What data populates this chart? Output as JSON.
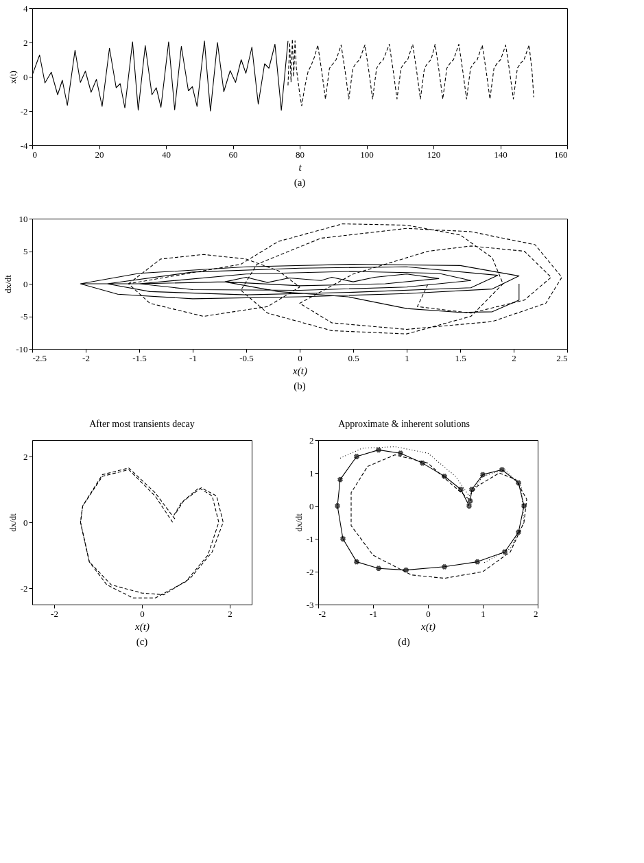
{
  "chart_data": [
    {
      "type": "line",
      "xlabel": "t",
      "ylabel": "x(t)",
      "xlim": [
        0,
        160
      ],
      "ylim": [
        -4,
        4
      ],
      "xticks": [
        0,
        20,
        40,
        60,
        80,
        100,
        120,
        140,
        160
      ],
      "yticks": [
        -4,
        -2,
        0,
        2,
        4
      ],
      "annotations": [
        "(a)"
      ],
      "series": [
        {
          "color": "#000000",
          "line_style": "solid",
          "x": [
            0,
            2.2,
            3.8,
            5.7,
            7.6,
            9,
            10.5,
            12.8,
            14.4,
            15.9,
            17.6,
            19.2,
            20.9,
            23.1,
            25.1,
            26.3,
            27.7,
            30,
            31.7,
            33.8,
            35.8,
            37.1,
            38.5,
            40.8,
            42.6,
            44.6,
            46.7,
            47.9,
            49.3,
            51.5,
            53.3,
            55.4,
            57.3,
            59.2,
            60.8,
            62.5,
            63.9,
            65.7,
            67.6,
            69.5,
            70.8,
            72.6,
            74.5,
            76.5
          ],
          "values": [
            0.1,
            1.27,
            -0.36,
            0.27,
            -1.05,
            -0.2,
            -1.67,
            1.55,
            -0.33,
            0.33,
            -0.9,
            -0.15,
            -1.73,
            1.67,
            -0.64,
            -0.4,
            -1.82,
            2.04,
            -1.95,
            1.82,
            -1.05,
            -0.64,
            -1.78,
            2.04,
            -1.93,
            1.78,
            -0.82,
            -0.58,
            -1.73,
            2.09,
            -2.0,
            2.0,
            -0.87,
            0.36,
            -0.33,
            1.0,
            0.2,
            1.73,
            -1.6,
            0.76,
            0.5,
            1.9,
            -1.96,
            2.09
          ]
        },
        {
          "color": "#000000",
          "line_style": "dashed",
          "x": [
            76.5,
            77,
            77.4,
            77.8,
            78.2,
            78.6,
            79,
            80,
            80.6,
            81.5,
            82.5,
            83.5,
            84.5,
            85.4,
            86.6,
            87.7,
            88.9,
            89.9,
            90.9,
            92.4,
            93.6,
            94.7,
            95.9,
            96.9,
            97.9,
            99.5,
            100.7,
            101.8,
            103,
            104,
            105,
            106.8,
            108,
            109.1,
            110.3,
            111.3,
            112.3,
            113.8,
            115,
            116.1,
            117.3,
            118.3,
            119.3,
            120.5,
            121.7,
            122.8,
            124,
            125,
            126,
            127.6,
            128.8,
            129.9,
            131.1,
            132.1,
            133.1,
            134.6,
            135.8,
            136.9,
            138.1,
            139.1,
            140.1,
            141.6,
            142.8,
            143.9,
            145.1,
            146.1,
            147.1,
            148.6,
            149.5,
            150
          ],
          "values": [
            -0.5,
            2.0,
            -0.3,
            2.2,
            0.0,
            2.1,
            0.5,
            -1.0,
            -1.7,
            -0.6,
            0.3,
            0.7,
            1.2,
            1.85,
            0.3,
            -1.3,
            0.5,
            0.75,
            1.0,
            1.85,
            0.3,
            -1.3,
            0.5,
            0.8,
            1.0,
            1.85,
            0.3,
            -1.3,
            0.5,
            0.8,
            1.0,
            1.9,
            0.3,
            -1.3,
            0.5,
            0.8,
            1.0,
            1.9,
            0.3,
            -1.3,
            0.5,
            0.8,
            1.0,
            1.9,
            0.3,
            -1.3,
            0.5,
            0.8,
            1.0,
            1.9,
            0.3,
            -1.3,
            0.5,
            0.8,
            1.0,
            1.85,
            0.3,
            -1.3,
            0.5,
            0.8,
            1.0,
            1.85,
            0.3,
            -1.3,
            0.5,
            0.8,
            1.0,
            1.85,
            0.3,
            -1.2
          ]
        }
      ]
    },
    {
      "type": "line",
      "xlabel": "x(t)",
      "ylabel": "dx/dt",
      "xlim": [
        -2.5,
        2.5
      ],
      "ylim": [
        -10,
        10
      ],
      "xticks": [
        -2.5,
        -2,
        -1.5,
        -1,
        -0.5,
        0,
        0.5,
        1,
        1.5,
        2,
        2.5
      ],
      "yticks": [
        -10,
        -5,
        0,
        5,
        10
      ],
      "annotations": [
        "(b)"
      ],
      "series": [
        {
          "color": "#000000",
          "line_style": "solid",
          "x": [
            -2.05,
            -1.5,
            -0.5,
            0.5,
            1.5,
            2.05,
            1.8,
            1,
            0,
            -1,
            -1.7,
            -2.05,
            -1.8,
            -1,
            0,
            1,
            1.85,
            1.6,
            0.5,
            -0.5,
            -1.4,
            -1.8,
            -1.5,
            -0.5,
            0.5,
            1.3,
            1.6,
            1,
            0,
            -1,
            -1.5,
            -0.7,
            -0.5,
            -0.3,
            -0.1,
            0.2,
            0.3,
            0.5,
            0.7,
            1.0,
            1.3,
            0.8,
            0,
            -0.7,
            -0.2,
            0.45,
            1.0,
            1.5,
            1.8,
            2.05,
            2.05
          ],
          "values": [
            0,
            1.6,
            2.6,
            3.0,
            2.8,
            1.2,
            -0.8,
            -1.5,
            -2.0,
            -2.3,
            -1.6,
            0,
            0,
            1.8,
            2.4,
            2.6,
            1.3,
            -0.6,
            -1.3,
            -1.7,
            -1.2,
            0,
            0,
            1.5,
            1.9,
            1.6,
            0.5,
            -0.5,
            -1.0,
            -0.9,
            0,
            0.3,
            1.0,
            0.2,
            0.9,
            0.5,
            1.0,
            0.3,
            1.0,
            1.5,
            0.8,
            0.0,
            -0.3,
            0.3,
            -1.2,
            -2.0,
            -3.8,
            -4.4,
            -4.3,
            -2.5,
            0
          ]
        },
        {
          "color": "#000000",
          "line_style": "dashed",
          "x": [
            -1.6,
            -1.3,
            -0.9,
            -0.5,
            -0.2,
            0,
            -0.3,
            -0.9,
            -1.4,
            -1.6,
            -0.55,
            -0.2,
            0.4,
            1.0,
            1.5,
            1.8,
            1.9,
            1.6,
            1.0,
            0.3,
            -0.3,
            -0.55,
            -0.4,
            0.2,
            1.0,
            1.6,
            2.2,
            2.45,
            2.3,
            1.8,
            1.0,
            0.3,
            0.0,
            0.5,
            1.2,
            1.6,
            2.1,
            2.35,
            2.1,
            1.6,
            1.1,
            1.2
          ],
          "values": [
            0,
            3.8,
            4.5,
            3.8,
            2,
            -0.5,
            -3.5,
            -5.0,
            -3.0,
            0,
            3,
            6.5,
            9.2,
            9.0,
            7.5,
            4,
            0,
            -5,
            -7.7,
            -7.2,
            -4.5,
            -1,
            3,
            7,
            8.5,
            8.0,
            6,
            1,
            -3,
            -5.8,
            -7,
            -6,
            -3,
            1.5,
            5,
            5.8,
            5,
            1,
            -2.5,
            -4.5,
            -3.5,
            0
          ]
        }
      ]
    },
    {
      "type": "line",
      "title": "After most transients decay",
      "xlabel": "x(t)",
      "ylabel": "dx/dt",
      "xlim": [
        -2.5,
        2.5
      ],
      "ylim": [
        -2.5,
        2.5
      ],
      "xticks": [
        -2,
        0,
        2
      ],
      "yticks": [
        -2,
        0,
        2
      ],
      "annotations": [
        "(c)"
      ],
      "series": [
        {
          "color": "#000000",
          "line_style": "dashed",
          "x": [
            0.7,
            0.3,
            -0.3,
            -0.9,
            -1.35,
            -1.4,
            -1.2,
            -0.8,
            -0.2,
            0.3,
            1.0,
            1.5,
            1.75,
            1.6,
            1.3,
            0.9,
            0.72
          ],
          "values": [
            0,
            0.8,
            1.6,
            1.4,
            0.5,
            0,
            -1.2,
            -1.9,
            -2.3,
            -2.3,
            -1.8,
            -1.0,
            0,
            0.8,
            1.05,
            0.6,
            0.2
          ]
        },
        {
          "color": "#000000",
          "line_style": "dashed",
          "x": [
            0.75,
            0.3,
            -0.3,
            -0.9,
            -1.35,
            -1.4,
            -1.2,
            -0.7,
            0,
            0.5,
            1.1,
            1.6,
            1.85,
            1.7,
            1.35,
            0.95,
            0.78
          ],
          "values": [
            0.1,
            0.9,
            1.65,
            1.45,
            0.5,
            0,
            -1.2,
            -1.9,
            -2.15,
            -2.2,
            -1.7,
            -0.9,
            0,
            0.8,
            1.05,
            0.65,
            0.3
          ]
        }
      ]
    },
    {
      "type": "line",
      "title": "Approximate & inherent solutions",
      "xlabel": "x(t)",
      "ylabel": "dx/dt",
      "xlim": [
        -2,
        2
      ],
      "ylim": [
        -3,
        2
      ],
      "xticks": [
        -2,
        -1,
        0,
        1,
        2
      ],
      "yticks": [
        -3,
        -2,
        -1,
        0,
        1,
        2
      ],
      "annotations": [
        "(d)"
      ],
      "series": [
        {
          "color": "#000000",
          "line_style": "solid",
          "marker": "cross",
          "x": [
            0.75,
            0.6,
            0.3,
            -0.1,
            -0.5,
            -0.9,
            -1.3,
            -1.6,
            -1.65,
            -1.55,
            -1.3,
            -0.9,
            -0.4,
            0.3,
            0.9,
            1.4,
            1.65,
            1.75,
            1.65,
            1.35,
            1.0,
            0.8,
            0.77
          ],
          "values": [
            0,
            0.5,
            0.9,
            1.3,
            1.6,
            1.7,
            1.5,
            0.8,
            0,
            -1,
            -1.7,
            -1.9,
            -1.95,
            -1.85,
            -1.7,
            -1.4,
            -0.8,
            0,
            0.7,
            1.1,
            0.95,
            0.5,
            0.15
          ]
        },
        {
          "color": "#000000",
          "line_style": "dashed",
          "x": [
            0.75,
            0.4,
            0,
            -0.6,
            -1.1,
            -1.4,
            -1.4,
            -1.0,
            -0.3,
            0.3,
            1.0,
            1.5,
            1.75,
            1.8,
            1.6,
            1.3,
            0.9,
            0.78
          ],
          "values": [
            0.2,
            0.7,
            1.3,
            1.55,
            1.2,
            0.4,
            -0.6,
            -1.5,
            -2.1,
            -2.2,
            -2.0,
            -1.4,
            -0.5,
            0.2,
            0.8,
            1.0,
            0.6,
            0.35
          ]
        },
        {
          "color": "#000000",
          "line_style": "dotted",
          "x": [
            -1.6,
            -1.2,
            -0.6,
            0,
            0.5,
            0.75,
            1.0,
            1.4,
            1.7,
            1.75,
            1.5,
            1.0
          ],
          "values": [
            1.45,
            1.75,
            1.8,
            1.6,
            0.9,
            0.3,
            0.9,
            1.1,
            0.6,
            -0.5,
            -1.3,
            -1.75
          ]
        }
      ]
    }
  ]
}
